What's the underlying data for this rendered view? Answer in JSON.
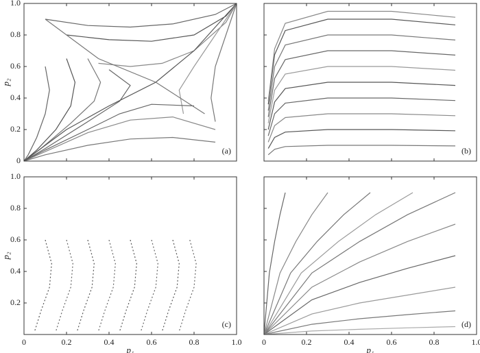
{
  "chart_data": [
    {
      "type": "line",
      "panel_label": "(a)",
      "y_label": "p₂",
      "xlim": [
        0,
        1
      ],
      "ylim": [
        0,
        1
      ],
      "xticks": [
        0,
        0.2,
        0.4,
        0.6,
        0.8,
        {
          "value": 1,
          "label": "1.0"
        }
      ],
      "xtick_labels": false,
      "yticks": [
        0,
        0.2,
        0.4,
        0.6,
        0.8,
        {
          "value": 1,
          "label": "1.0"
        }
      ],
      "ytick_labels": true,
      "line_style": "solid",
      "series": [
        {
          "color": "#666666",
          "x": [
            0.1,
            0.3,
            0.5,
            0.7,
            0.9,
            1.0
          ],
          "values": [
            0.9,
            0.86,
            0.85,
            0.87,
            0.93,
            1.0
          ]
        },
        {
          "color": "#555555",
          "x": [
            0.2,
            0.4,
            0.6,
            0.8,
            0.95,
            1.0
          ],
          "values": [
            0.8,
            0.77,
            0.76,
            0.8,
            0.92,
            1.0
          ]
        },
        {
          "color": "#888888",
          "x": [
            0.35,
            0.5,
            0.65,
            0.8,
            0.95,
            1.0
          ],
          "values": [
            0.62,
            0.6,
            0.62,
            0.7,
            0.88,
            1.0
          ]
        },
        {
          "color": "#777777",
          "x": [
            0.9,
            0.88,
            0.9,
            0.95,
            1.0
          ],
          "values": [
            0.25,
            0.4,
            0.6,
            0.8,
            1.0
          ]
        },
        {
          "color": "#999999",
          "x": [
            0.75,
            0.73,
            0.8,
            0.9,
            1.0
          ],
          "values": [
            0.3,
            0.45,
            0.6,
            0.8,
            1.0
          ]
        },
        {
          "color": "#666666",
          "x": [
            0.1,
            0.12,
            0.1,
            0.06,
            0.02,
            0
          ],
          "values": [
            0.6,
            0.45,
            0.3,
            0.15,
            0.04,
            0
          ]
        },
        {
          "color": "#555555",
          "x": [
            0.2,
            0.24,
            0.22,
            0.15,
            0.06,
            0
          ],
          "values": [
            0.65,
            0.5,
            0.35,
            0.2,
            0.07,
            0
          ]
        },
        {
          "color": "#777777",
          "x": [
            0.3,
            0.36,
            0.33,
            0.22,
            0.08,
            0
          ],
          "values": [
            0.65,
            0.5,
            0.38,
            0.24,
            0.08,
            0
          ]
        },
        {
          "color": "#666666",
          "x": [
            0.4,
            0.5,
            0.45,
            0.3,
            0.1,
            0
          ],
          "values": [
            0.58,
            0.48,
            0.38,
            0.25,
            0.08,
            0
          ]
        },
        {
          "color": "#888888",
          "x": [
            0.9,
            0.7,
            0.5,
            0.3,
            0.1,
            0
          ],
          "values": [
            0.2,
            0.28,
            0.26,
            0.18,
            0.06,
            0
          ]
        },
        {
          "color": "#777777",
          "x": [
            0.9,
            0.7,
            0.5,
            0.3,
            0.1,
            0
          ],
          "values": [
            0.12,
            0.15,
            0.14,
            0.1,
            0.04,
            0
          ]
        },
        {
          "color": "#666666",
          "x": [
            0.8,
            0.6,
            0.45,
            0.3,
            0.1,
            0
          ],
          "values": [
            0.35,
            0.36,
            0.3,
            0.2,
            0.07,
            0
          ]
        },
        {
          "color": "#555555",
          "x": [
            0,
            0.2,
            0.4,
            0.62,
            0.8,
            1.0
          ],
          "values": [
            0,
            0.2,
            0.35,
            0.5,
            0.7,
            1.0
          ]
        },
        {
          "color": "#777777",
          "x": [
            0.1,
            0.35,
            0.62,
            0.85
          ],
          "values": [
            0.9,
            0.65,
            0.5,
            0.3
          ]
        }
      ]
    },
    {
      "type": "line",
      "panel_label": "(b)",
      "xlim": [
        0,
        1
      ],
      "ylim": [
        0,
        1
      ],
      "xticks": [
        0,
        0.2,
        0.4,
        0.6,
        0.8,
        {
          "value": 1,
          "label": "1.0"
        }
      ],
      "xtick_labels": false,
      "yticks": [
        0,
        0.2,
        0.4,
        0.6,
        0.8,
        {
          "value": 1,
          "label": "1.0"
        }
      ],
      "ytick_labels": false,
      "line_style": "solid",
      "series": [
        {
          "color": "#777777",
          "x": [
            0.02,
            0.05,
            0.1,
            0.3,
            0.6,
            0.9
          ],
          "values": [
            0.04,
            0.075,
            0.092,
            0.1,
            0.1,
            0.096
          ]
        },
        {
          "color": "#555555",
          "x": [
            0.02,
            0.05,
            0.1,
            0.3,
            0.6,
            0.9
          ],
          "values": [
            0.08,
            0.15,
            0.184,
            0.2,
            0.2,
            0.192
          ]
        },
        {
          "color": "#888888",
          "x": [
            0.02,
            0.05,
            0.1,
            0.3,
            0.6,
            0.9
          ],
          "values": [
            0.12,
            0.225,
            0.276,
            0.3,
            0.3,
            0.288
          ]
        },
        {
          "color": "#666666",
          "x": [
            0.02,
            0.05,
            0.1,
            0.3,
            0.6,
            0.9
          ],
          "values": [
            0.16,
            0.3,
            0.368,
            0.4,
            0.4,
            0.384
          ]
        },
        {
          "color": "#555555",
          "x": [
            0.02,
            0.05,
            0.1,
            0.3,
            0.6,
            0.9
          ],
          "values": [
            0.2,
            0.375,
            0.46,
            0.5,
            0.5,
            0.48
          ]
        },
        {
          "color": "#999999",
          "x": [
            0.02,
            0.05,
            0.1,
            0.3,
            0.6,
            0.9
          ],
          "values": [
            0.24,
            0.45,
            0.552,
            0.6,
            0.6,
            0.576
          ]
        },
        {
          "color": "#666666",
          "x": [
            0.02,
            0.05,
            0.1,
            0.3,
            0.6,
            0.9
          ],
          "values": [
            0.28,
            0.525,
            0.644,
            0.7,
            0.7,
            0.672
          ]
        },
        {
          "color": "#777777",
          "x": [
            0.02,
            0.05,
            0.1,
            0.3,
            0.6,
            0.9
          ],
          "values": [
            0.32,
            0.6,
            0.736,
            0.8,
            0.8,
            0.768
          ]
        },
        {
          "color": "#555555",
          "x": [
            0.02,
            0.05,
            0.1,
            0.3,
            0.6,
            0.9
          ],
          "values": [
            0.36,
            0.675,
            0.828,
            0.9,
            0.9,
            0.864
          ]
        },
        {
          "color": "#888888",
          "x": [
            0.02,
            0.05,
            0.1,
            0.3,
            0.6,
            0.9
          ],
          "values": [
            0.38,
            0.7125,
            0.874,
            0.95,
            0.95,
            0.912
          ]
        }
      ]
    },
    {
      "type": "line",
      "panel_label": "(c)",
      "x_label": "p₁",
      "y_label": "p₂",
      "xlim": [
        0,
        1
      ],
      "ylim": [
        0,
        1
      ],
      "xticks": [
        0,
        0.2,
        0.4,
        0.6,
        0.8,
        {
          "value": 1,
          "label": "1.0"
        }
      ],
      "xtick_labels": true,
      "yticks": [
        0.2,
        0.4,
        0.6,
        0.8,
        {
          "value": 1,
          "label": "1.0"
        }
      ],
      "ytick_labels": true,
      "line_style": "dotted",
      "series": [
        {
          "color": "#555555",
          "x": [
            0.1,
            0.13,
            0.12,
            0.08,
            0.05
          ],
          "values": [
            0.6,
            0.45,
            0.3,
            0.15,
            0.02
          ]
        },
        {
          "color": "#666666",
          "x": [
            0.2,
            0.23,
            0.22,
            0.18,
            0.15
          ],
          "values": [
            0.6,
            0.45,
            0.3,
            0.15,
            0.02
          ]
        },
        {
          "color": "#555555",
          "x": [
            0.3,
            0.33,
            0.32,
            0.28,
            0.25
          ],
          "values": [
            0.6,
            0.45,
            0.3,
            0.15,
            0.02
          ]
        },
        {
          "color": "#666666",
          "x": [
            0.4,
            0.43,
            0.42,
            0.38,
            0.35
          ],
          "values": [
            0.6,
            0.45,
            0.3,
            0.15,
            0.02
          ]
        },
        {
          "color": "#555555",
          "x": [
            0.5,
            0.53,
            0.52,
            0.48,
            0.45
          ],
          "values": [
            0.6,
            0.45,
            0.3,
            0.15,
            0.02
          ]
        },
        {
          "color": "#666666",
          "x": [
            0.6,
            0.63,
            0.62,
            0.58,
            0.55
          ],
          "values": [
            0.6,
            0.45,
            0.3,
            0.15,
            0.02
          ]
        },
        {
          "color": "#555555",
          "x": [
            0.7,
            0.73,
            0.72,
            0.68,
            0.65
          ],
          "values": [
            0.6,
            0.45,
            0.3,
            0.15,
            0.02
          ]
        },
        {
          "color": "#666666",
          "x": [
            0.78,
            0.81,
            0.8,
            0.76,
            0.73
          ],
          "values": [
            0.6,
            0.45,
            0.3,
            0.15,
            0.02
          ]
        }
      ]
    },
    {
      "type": "line",
      "panel_label": "(d)",
      "x_label": "p₁",
      "xlim": [
        0,
        1
      ],
      "ylim": [
        0,
        1
      ],
      "xticks": [
        0,
        0.2,
        0.4,
        0.6,
        0.8,
        {
          "value": 1,
          "label": "1.0"
        }
      ],
      "xtick_labels": true,
      "yticks": [
        0,
        0.2,
        0.4,
        0.6,
        0.8,
        {
          "value": 1,
          "label": "1.0"
        }
      ],
      "ytick_labels": false,
      "line_style": "solid",
      "series": [
        {
          "color": "#666666",
          "x": [
            0,
            0.025,
            0.05,
            0.075,
            0.1
          ],
          "values": [
            0,
            0.39,
            0.59,
            0.76,
            0.9
          ]
        },
        {
          "color": "#888888",
          "x": [
            0,
            0.075,
            0.15,
            0.225,
            0.3
          ],
          "values": [
            0,
            0.39,
            0.59,
            0.76,
            0.9
          ]
        },
        {
          "color": "#777777",
          "x": [
            0,
            0.125,
            0.25,
            0.375,
            0.5
          ],
          "values": [
            0,
            0.39,
            0.59,
            0.76,
            0.9
          ]
        },
        {
          "color": "#999999",
          "x": [
            0,
            0.175,
            0.35,
            0.525,
            0.7
          ],
          "values": [
            0,
            0.39,
            0.59,
            0.76,
            0.9
          ]
        },
        {
          "color": "#777777",
          "x": [
            0,
            0.225,
            0.45,
            0.675,
            0.9
          ],
          "values": [
            0,
            0.39,
            0.59,
            0.76,
            0.9
          ]
        },
        {
          "color": "#888888",
          "x": [
            0,
            0.225,
            0.45,
            0.675,
            0.9
          ],
          "values": [
            0,
            0.3,
            0.46,
            0.59,
            0.7
          ]
        },
        {
          "color": "#666666",
          "x": [
            0,
            0.225,
            0.45,
            0.675,
            0.9
          ],
          "values": [
            0,
            0.22,
            0.33,
            0.42,
            0.5
          ]
        },
        {
          "color": "#999999",
          "x": [
            0,
            0.225,
            0.45,
            0.675,
            0.9
          ],
          "values": [
            0,
            0.13,
            0.2,
            0.25,
            0.3
          ]
        },
        {
          "color": "#777777",
          "x": [
            0,
            0.225,
            0.45,
            0.675,
            0.9
          ],
          "values": [
            0,
            0.065,
            0.1,
            0.126,
            0.15
          ]
        },
        {
          "color": "#aaaaaa",
          "x": [
            0,
            0.225,
            0.45,
            0.675,
            0.9
          ],
          "values": [
            0,
            0.022,
            0.033,
            0.042,
            0.05
          ]
        }
      ]
    }
  ]
}
